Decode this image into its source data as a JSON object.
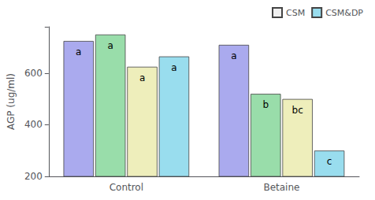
{
  "chart_data": {
    "type": "bar",
    "categories": [
      "Control",
      "Betaine"
    ],
    "ylabel": "AGP (ug/ml)",
    "series": [
      {
        "color": "#aaaaee",
        "values": [
          725,
          710
        ],
        "annotations": [
          "a",
          "a"
        ]
      },
      {
        "color": "#99ddaa",
        "values": [
          750,
          520
        ],
        "annotations": [
          "a",
          "b"
        ]
      },
      {
        "color": "#eeeebb",
        "values": [
          625,
          500
        ],
        "annotations": [
          "a",
          "bc"
        ]
      },
      {
        "color": "#99ddee",
        "values": [
          665,
          300
        ],
        "annotations": [
          "a",
          "c"
        ]
      }
    ],
    "ylim": [
      200,
      780
    ],
    "yticks": [
      200,
      400,
      600
    ],
    "grid": false,
    "legend": "upper right",
    "legend_entries": [
      {
        "name": "CSM",
        "color": "#f0f0f0"
      },
      {
        "name": "CSM&DP",
        "color": "#99ddee"
      }
    ]
  }
}
